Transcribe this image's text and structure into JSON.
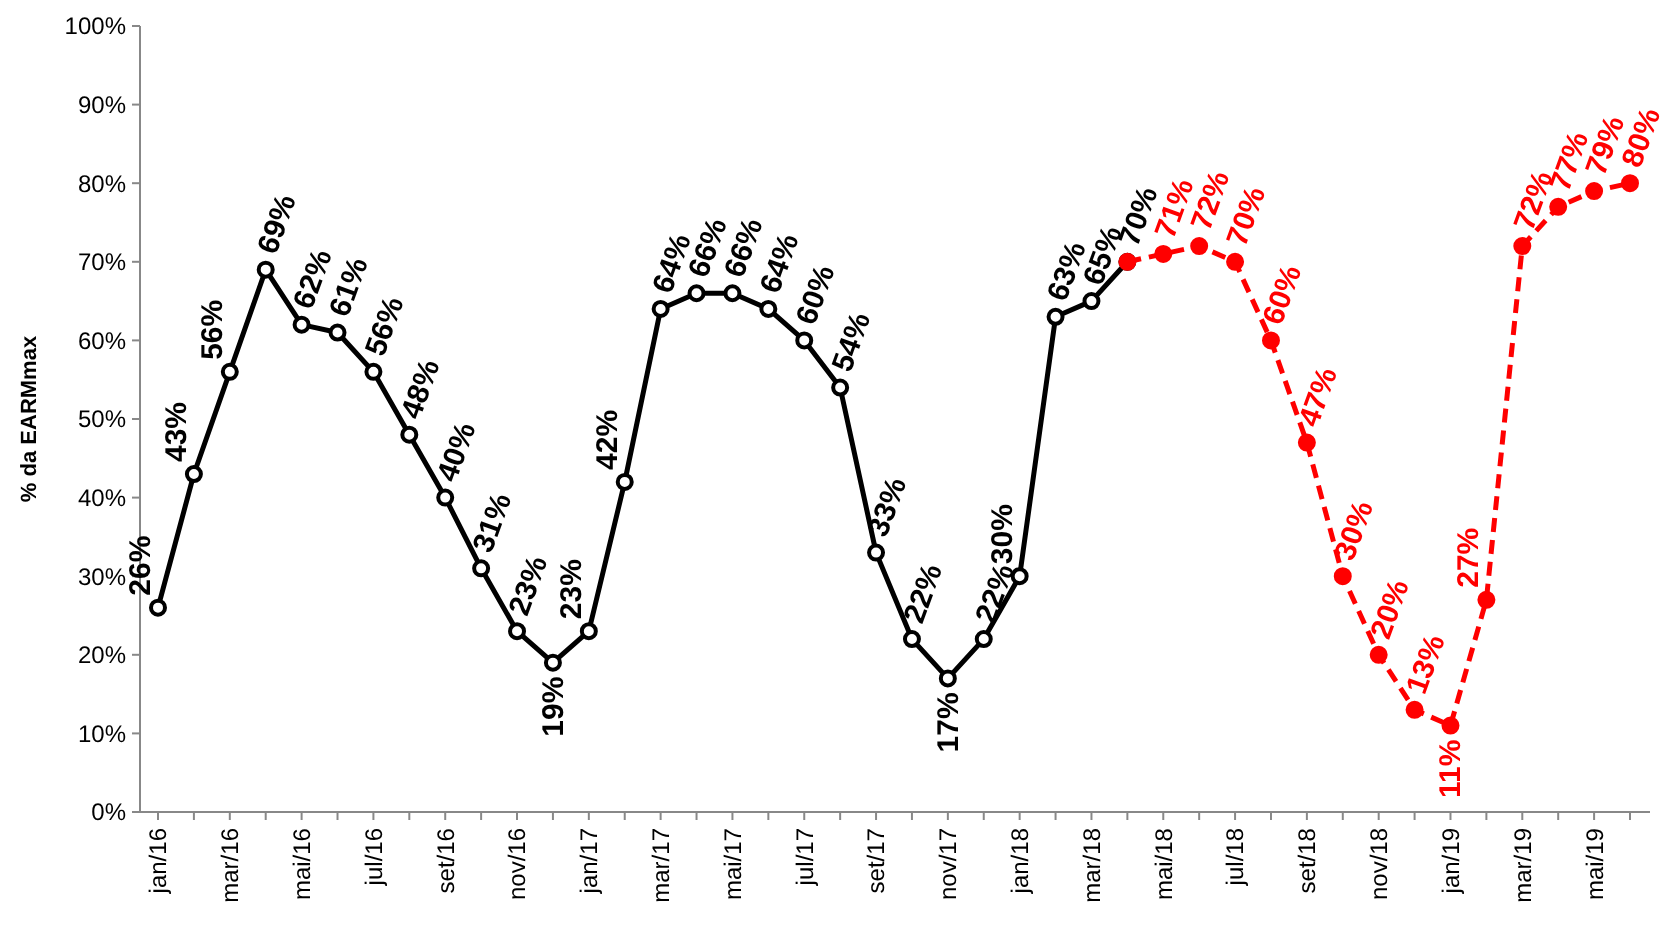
{
  "chart_data": {
    "type": "line",
    "ylabel": "% da EARMmax",
    "categories": [
      "jan/16",
      null,
      "mar/16",
      null,
      "mai/16",
      null,
      "jul/16",
      null,
      "set/16",
      null,
      "nov/16",
      null,
      "jan/17",
      null,
      "mar/17",
      null,
      "mai/17",
      null,
      "jul/17",
      null,
      "set/17",
      null,
      "nov/17",
      null,
      "jan/18",
      null,
      "mar/18",
      null,
      "mai/18",
      null,
      "jul/18",
      null,
      "set/18",
      null,
      "nov/18",
      null,
      "jan/19",
      null,
      "mar/19",
      null,
      "mai/19",
      null
    ],
    "ylim": [
      0,
      100
    ],
    "yticks": [
      {
        "value": 0,
        "label": "0%"
      },
      {
        "value": 10,
        "label": "10%"
      },
      {
        "value": 20,
        "label": "20%"
      },
      {
        "value": 30,
        "label": "30%"
      },
      {
        "value": 40,
        "label": "40%"
      },
      {
        "value": 50,
        "label": "50%"
      },
      {
        "value": 60,
        "label": "60%"
      },
      {
        "value": 70,
        "label": "70%"
      },
      {
        "value": 80,
        "label": "80%"
      },
      {
        "value": 90,
        "label": "90%"
      },
      {
        "value": 100,
        "label": "100%"
      }
    ],
    "grid": false,
    "marker": "circle",
    "series": [
      {
        "color": "#000000",
        "line_style": "solid",
        "values": [
          26,
          43,
          56,
          69,
          62,
          61,
          56,
          48,
          40,
          31,
          23,
          19,
          23,
          42,
          64,
          66,
          66,
          64,
          60,
          54,
          33,
          22,
          17,
          22,
          30,
          63,
          65,
          70,
          null,
          null,
          null,
          null,
          null,
          null,
          null,
          null,
          null,
          null,
          null,
          null,
          null,
          null
        ],
        "value_labels": [
          "26%",
          "43%",
          "56%",
          "69%",
          "62%",
          "61%",
          "56%",
          "48%",
          "40%",
          "31%",
          "23%",
          "19%",
          "23%",
          "42%",
          "64%",
          "66%",
          "66%",
          "64%",
          "60%",
          "54%",
          "33%",
          "22%",
          "17%",
          "22%",
          "30%",
          "63%",
          "65%",
          "70%",
          null,
          null,
          null,
          null,
          null,
          null,
          null,
          null,
          null,
          null,
          null,
          null,
          null,
          null
        ]
      },
      {
        "color": "#ff0000",
        "line_style": "dashed",
        "values": [
          null,
          null,
          null,
          null,
          null,
          null,
          null,
          null,
          null,
          null,
          null,
          null,
          null,
          null,
          null,
          null,
          null,
          null,
          null,
          null,
          null,
          null,
          null,
          null,
          null,
          null,
          null,
          70,
          71,
          72,
          70,
          60,
          47,
          30,
          20,
          13,
          11,
          27,
          72,
          77,
          79,
          80
        ],
        "value_labels": [
          null,
          null,
          null,
          null,
          null,
          null,
          null,
          null,
          null,
          null,
          null,
          null,
          null,
          null,
          null,
          null,
          null,
          null,
          null,
          null,
          null,
          null,
          null,
          null,
          null,
          null,
          null,
          null,
          "71%",
          "72%",
          "70%",
          "60%",
          "47%",
          "30%",
          "20%",
          "13%",
          "11%",
          "27%",
          "72%",
          "77%",
          "79%",
          "80%"
        ]
      }
    ]
  }
}
